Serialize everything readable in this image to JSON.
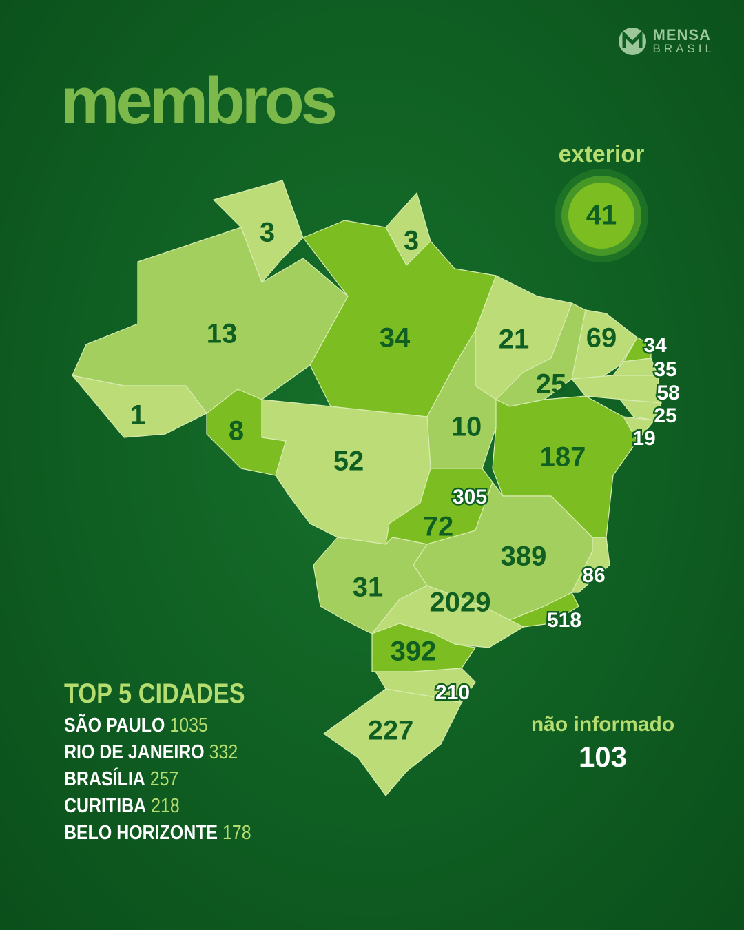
{
  "brand": {
    "name": "MENSA",
    "sub": "BRASIL"
  },
  "title": "membros",
  "exterior": {
    "label": "exterior",
    "value": 41
  },
  "states": [
    3,
    3,
    13,
    34,
    21,
    69,
    34,
    35,
    58,
    25,
    19,
    25,
    1,
    8,
    10,
    187,
    52,
    305,
    72,
    389,
    86,
    31,
    2029,
    518,
    392,
    210,
    227
  ],
  "top_cities": {
    "title": "TOP 5 CIDADES",
    "items": [
      {
        "name": "SÃO PAULO",
        "value": 1035
      },
      {
        "name": "RIO DE JANEIRO",
        "value": 332
      },
      {
        "name": "BRASÍLIA",
        "value": 257
      },
      {
        "name": "CURITIBA",
        "value": 218
      },
      {
        "name": "BELO HORIZONTE",
        "value": 178
      }
    ]
  },
  "not_informed": {
    "label": "não informado",
    "value": 103
  }
}
